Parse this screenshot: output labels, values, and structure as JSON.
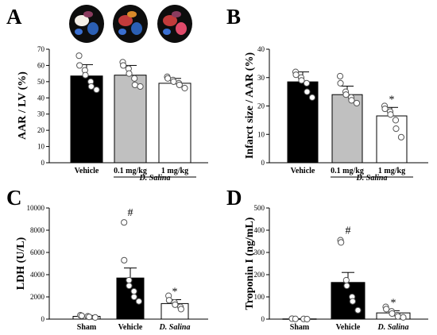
{
  "chart_data": [
    {
      "panel": "A",
      "type": "bar",
      "ylabel": "AAR / LV (%)",
      "ylim": [
        0,
        70
      ],
      "yticks": [
        0,
        10,
        20,
        30,
        40,
        50,
        60,
        70
      ],
      "categories": [
        "Vehicle",
        "0.1 mg/kg",
        "1 mg/kg"
      ],
      "group_label": "D. Salina",
      "bar_colors": [
        "#000000",
        "#c0c0c0",
        "#ffffff"
      ],
      "values": [
        53.5,
        54,
        49
      ],
      "errors": [
        7,
        6,
        3
      ],
      "points": [
        [
          66,
          60,
          57,
          54,
          50,
          47,
          45
        ],
        [
          62,
          60,
          58,
          55,
          52,
          48,
          47
        ],
        [
          53,
          52,
          51,
          50,
          49,
          48,
          46
        ]
      ],
      "significance": [
        "",
        "",
        ""
      ],
      "images": [
        "heart-slice-vehicle",
        "heart-slice-0.1mg",
        "heart-slice-1mg"
      ]
    },
    {
      "panel": "B",
      "type": "bar",
      "ylabel": "Infarct size / AAR (%)",
      "ylim": [
        0,
        40
      ],
      "yticks": [
        0,
        10,
        20,
        30,
        40
      ],
      "categories": [
        "Vehicle",
        "0.1 mg/kg",
        "1 mg/kg"
      ],
      "group_label": "D. Salina",
      "bar_colors": [
        "#000000",
        "#c0c0c0",
        "#ffffff"
      ],
      "values": [
        28.5,
        24,
        16.5
      ],
      "errors": [
        3.5,
        3,
        3
      ],
      "points": [
        [
          32,
          31,
          30,
          29,
          28,
          25,
          23
        ],
        [
          30.5,
          28,
          25,
          24,
          23,
          22,
          21
        ],
        [
          20,
          19,
          18,
          17,
          15,
          12,
          9
        ]
      ],
      "significance": [
        "",
        "",
        "*"
      ]
    },
    {
      "panel": "C",
      "type": "bar",
      "ylabel": "LDH (U/L)",
      "ylim": [
        0,
        10000
      ],
      "yticks": [
        0,
        2000,
        4000,
        6000,
        8000,
        10000
      ],
      "categories": [
        "Sham",
        "Vehicle",
        "D. Salina"
      ],
      "bar_colors": [
        "#ffffff",
        "#000000",
        "#ffffff"
      ],
      "values": [
        250,
        3700,
        1400
      ],
      "errors": [
        80,
        900,
        350
      ],
      "points": [
        [
          350,
          300,
          250,
          200,
          150
        ],
        [
          8700,
          5300,
          3500,
          3000,
          2500,
          2000,
          1600
        ],
        [
          2100,
          1700,
          1500,
          1300,
          1100,
          900
        ]
      ],
      "significance": [
        "",
        "#",
        "*"
      ]
    },
    {
      "panel": "D",
      "type": "bar",
      "ylabel": "Troponin I (ng/mL)",
      "ylim": [
        0,
        500
      ],
      "yticks": [
        0,
        100,
        200,
        300,
        400,
        500
      ],
      "categories": [
        "Sham",
        "Vehicle",
        "D. Salina"
      ],
      "bar_colors": [
        "#ffffff",
        "#000000",
        "#ffffff"
      ],
      "values": [
        1,
        165,
        28
      ],
      "errors": [
        0.5,
        45,
        10
      ],
      "points": [
        [
          2,
          1,
          1,
          0
        ],
        [
          355,
          345,
          175,
          150,
          100,
          80,
          40
        ],
        [
          55,
          45,
          35,
          25,
          18,
          12,
          8
        ]
      ],
      "significance": [
        "",
        "#",
        "*"
      ]
    }
  ]
}
